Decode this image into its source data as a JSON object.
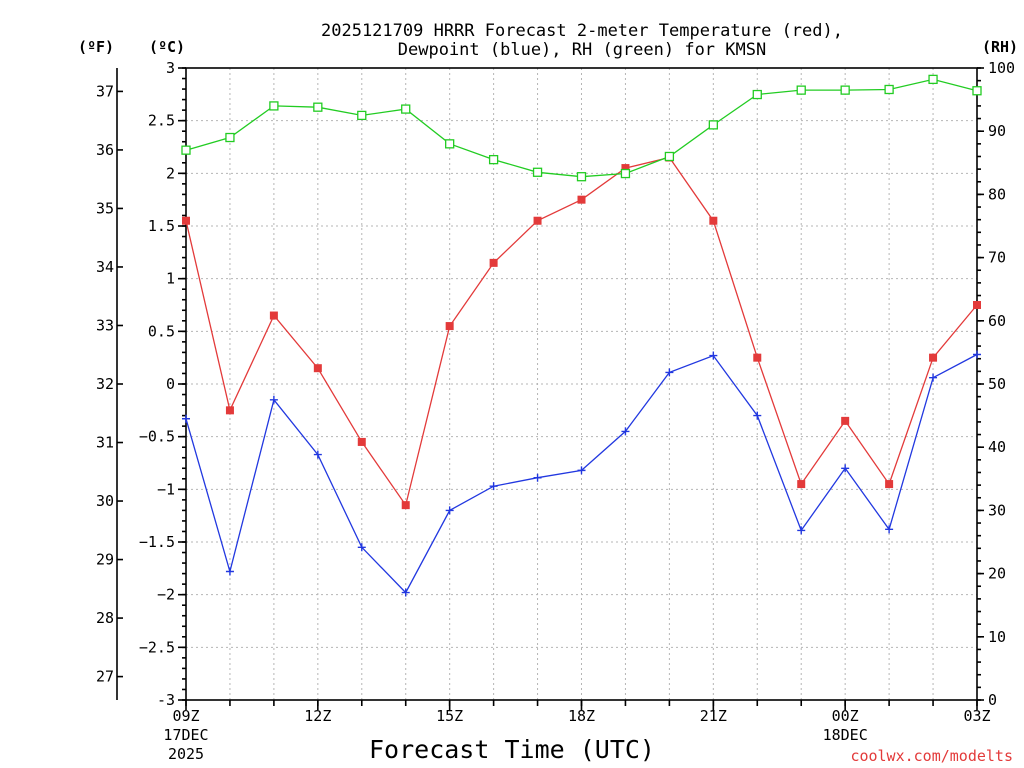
{
  "chart_data": {
    "type": "line",
    "title_line1": "2025121709 HRRR Forecast 2-meter Temperature (red),",
    "title_line2": "Dewpoint (blue), RH (green) for KMSN",
    "xlabel": "Forecast Time (UTC)",
    "credit": "coolwx.com/modelts",
    "unit_f": "(ºF)",
    "unit_c": "(ºC)",
    "unit_rh": "(RH)",
    "x_hours": [
      0,
      1,
      2,
      3,
      4,
      5,
      6,
      7,
      8,
      9,
      10,
      11,
      12,
      13,
      14,
      15,
      16,
      17,
      18
    ],
    "x_ticks": [
      {
        "hour": 0,
        "label": "09Z",
        "sub1": "17DEC",
        "sub2": "2025"
      },
      {
        "hour": 3,
        "label": "12Z",
        "sub1": "",
        "sub2": ""
      },
      {
        "hour": 6,
        "label": "15Z",
        "sub1": "",
        "sub2": ""
      },
      {
        "hour": 9,
        "label": "18Z",
        "sub1": "",
        "sub2": ""
      },
      {
        "hour": 12,
        "label": "21Z",
        "sub1": "",
        "sub2": ""
      },
      {
        "hour": 15,
        "label": "00Z",
        "sub1": "18DEC",
        "sub2": ""
      },
      {
        "hour": 18,
        "label": "03Z",
        "sub1": "",
        "sub2": ""
      }
    ],
    "ylim_c": [
      -3,
      3
    ],
    "c_ticks": [
      "-3",
      "−2.5",
      "−2",
      "−1.5",
      "−1",
      "−0.5",
      "0",
      "0.5",
      "1",
      "1.5",
      "2",
      "2.5",
      "3"
    ],
    "c_tick_values": [
      -3,
      -2.5,
      -2,
      -1.5,
      -1,
      -0.5,
      0,
      0.5,
      1,
      1.5,
      2,
      2.5,
      3
    ],
    "f_ticks": [
      "27",
      "28",
      "29",
      "30",
      "31",
      "32",
      "33",
      "34",
      "35",
      "36",
      "37"
    ],
    "f_tick_values": [
      27,
      28,
      29,
      30,
      31,
      32,
      33,
      34,
      35,
      36,
      37
    ],
    "ylim_rh": [
      0,
      100
    ],
    "rh_ticks": [
      "0",
      "10",
      "20",
      "30",
      "40",
      "50",
      "60",
      "70",
      "80",
      "90",
      "100"
    ],
    "rh_tick_values": [
      0,
      10,
      20,
      30,
      40,
      50,
      60,
      70,
      80,
      90,
      100
    ],
    "grid": true,
    "series": [
      {
        "name": "Temperature",
        "axis": "c",
        "color": "#e33a3a",
        "marker": "filled-square",
        "values": [
          1.55,
          -0.25,
          0.65,
          0.15,
          -0.55,
          -1.15,
          0.55,
          1.15,
          1.55,
          1.75,
          2.05,
          2.15,
          1.55,
          0.25,
          -0.95,
          -0.35,
          -0.95,
          0.25,
          0.75
        ]
      },
      {
        "name": "Dewpoint",
        "axis": "c",
        "color": "#2238e0",
        "marker": "plus",
        "values": [
          -0.33,
          -1.78,
          -0.15,
          -0.67,
          -1.55,
          -1.98,
          -1.2,
          -0.97,
          -0.89,
          -0.82,
          -0.45,
          0.11,
          0.27,
          -0.3,
          -1.39,
          -0.8,
          -1.38,
          0.06,
          0.28
        ]
      },
      {
        "name": "RH",
        "axis": "rh",
        "color": "#22cc22",
        "marker": "open-square",
        "values": [
          87,
          89,
          94,
          93.8,
          92.5,
          93.5,
          88,
          85.5,
          83.5,
          82.8,
          83.3,
          86,
          91,
          95.8,
          96.5,
          96.5,
          96.6,
          98.2,
          96.4
        ]
      }
    ]
  }
}
